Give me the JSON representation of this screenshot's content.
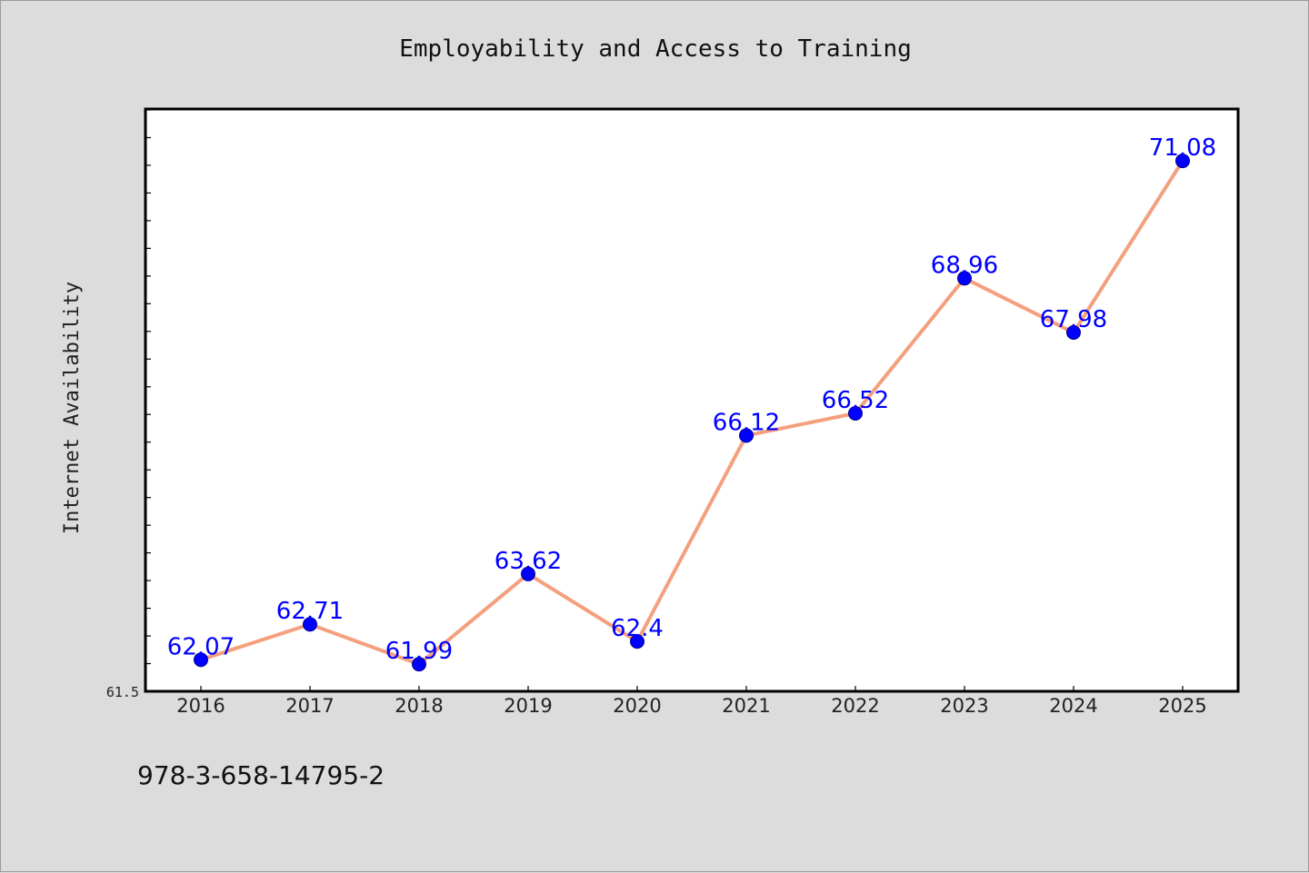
{
  "chart_data": {
    "type": "line",
    "title": "Employability and Access to Training",
    "xlabel": "",
    "ylabel": "Internet Availability",
    "categories": [
      "2016",
      "2017",
      "2018",
      "2019",
      "2020",
      "2021",
      "2022",
      "2023",
      "2024",
      "2025"
    ],
    "series": [
      {
        "values": [
          62.07,
          62.71,
          61.99,
          63.62,
          62.4,
          66.12,
          66.52,
          68.96,
          67.98,
          71.08
        ],
        "labels": [
          "62.07",
          "62.71",
          "61.99",
          "63.62",
          "62.4",
          "66.12",
          "66.52",
          "68.96",
          "67.98",
          "71.08"
        ],
        "line_color": "#f4a07e",
        "marker_color": "#0000ff"
      }
    ],
    "ylim": [
      61.5,
      72.0
    ],
    "y_min_tick_label": "61.5",
    "grid": false,
    "legend": "none"
  },
  "footer": {
    "isbn": "978-3-658-14795-2"
  }
}
